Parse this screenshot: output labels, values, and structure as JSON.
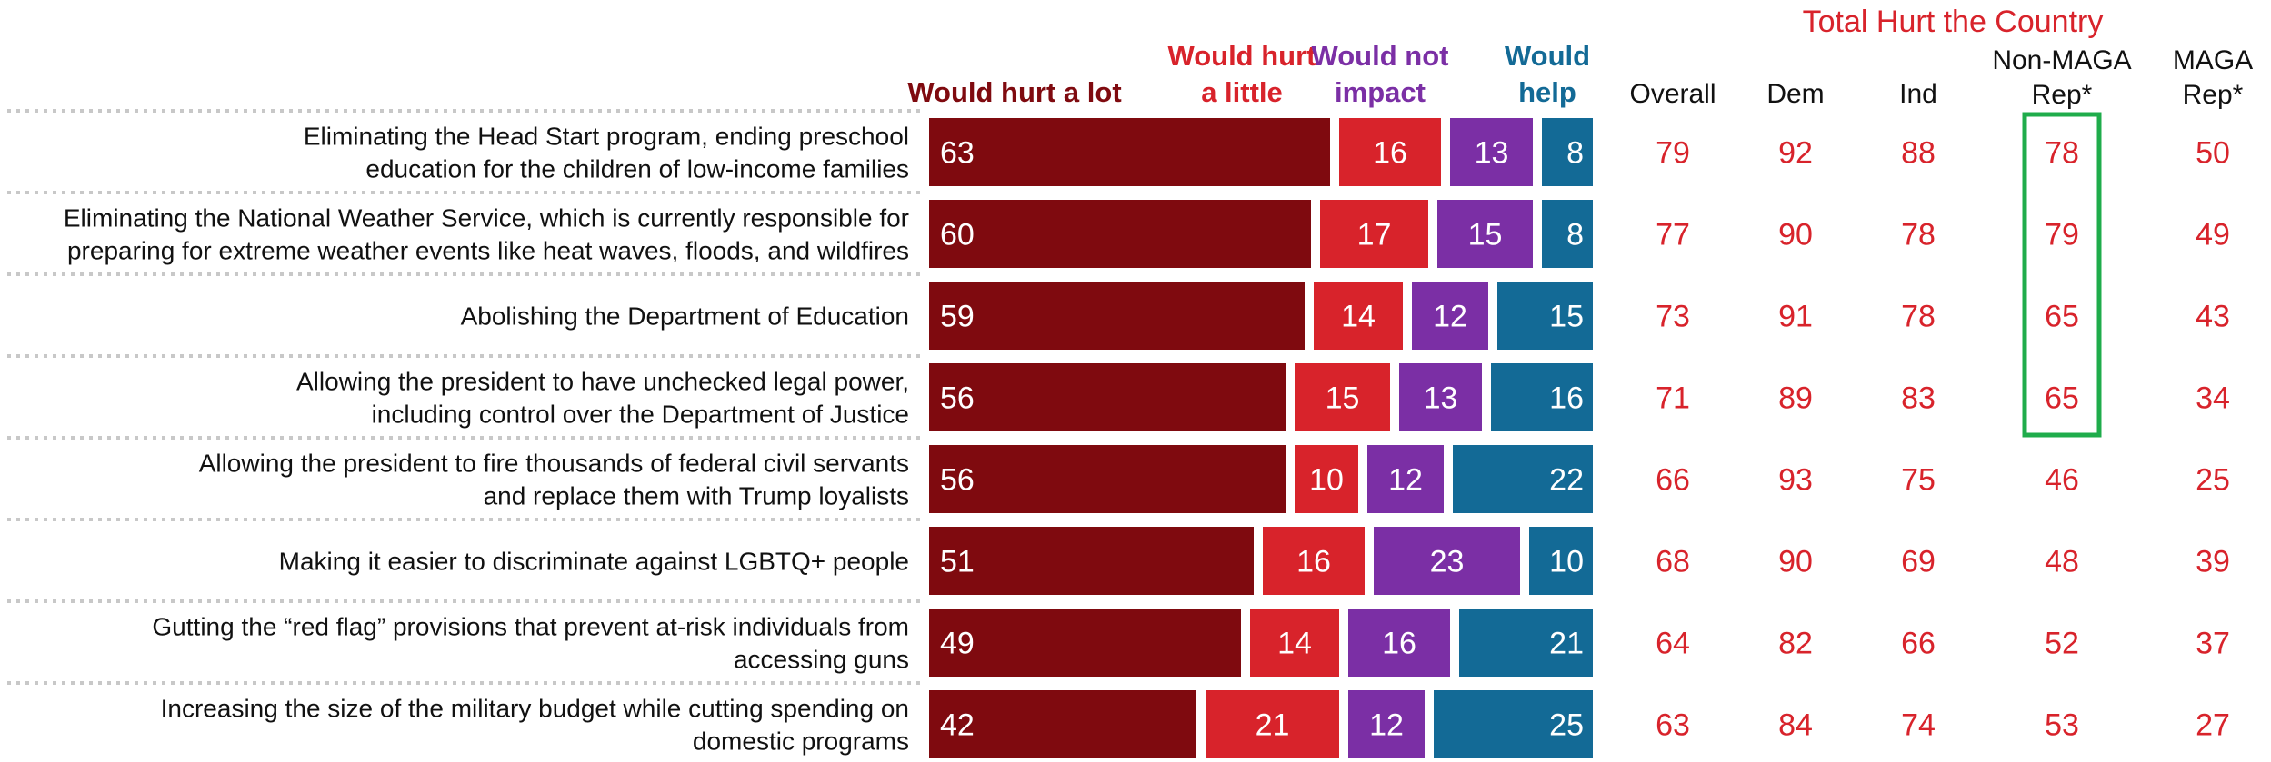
{
  "chart_data": {
    "type": "bar",
    "stacked": true,
    "orientation": "horizontal",
    "categories": [
      [
        "Eliminating the Head Start program, ending preschool",
        "education for the children of low-income families"
      ],
      [
        "Eliminating the National Weather Service, which is currently responsible for",
        "preparing for extreme weather events like heat waves, floods, and wildfires"
      ],
      [
        "Abolishing the Department of Education"
      ],
      [
        "Allowing the president to have unchecked legal power,",
        "including control over the Department of Justice"
      ],
      [
        "Allowing the president to fire thousands of federal civil servants",
        "and replace them with Trump loyalists"
      ],
      [
        "Making it easier to discriminate against LGBTQ+ people"
      ],
      [
        "Gutting the “red flag” provisions that prevent at-risk individuals from",
        "accessing guns"
      ],
      [
        "Increasing the size of the military budget while cutting spending on",
        "domestic programs"
      ]
    ],
    "series": [
      {
        "name": [
          "Would hurt a lot"
        ],
        "color": "#7f0a0f",
        "values": [
          63,
          60,
          59,
          56,
          56,
          51,
          49,
          42
        ]
      },
      {
        "name": [
          "Would hurt",
          "a little"
        ],
        "color": "#d8232b",
        "values": [
          16,
          17,
          14,
          15,
          10,
          16,
          14,
          21
        ]
      },
      {
        "name": [
          "Would not",
          "impact"
        ],
        "color": "#7b2fa5",
        "values": [
          13,
          15,
          12,
          13,
          12,
          23,
          16,
          12
        ]
      },
      {
        "name": [
          "Would",
          "help"
        ],
        "color": "#136a96",
        "values": [
          8,
          8,
          15,
          16,
          22,
          10,
          21,
          25
        ]
      }
    ],
    "table": {
      "title": "Total Hurt the Country",
      "color": "#d8232b",
      "columns": [
        {
          "header": [
            "Overall"
          ],
          "values": [
            79,
            77,
            73,
            71,
            66,
            68,
            64,
            63
          ]
        },
        {
          "header": [
            "Dem"
          ],
          "values": [
            92,
            90,
            91,
            89,
            93,
            90,
            82,
            84
          ]
        },
        {
          "header": [
            "Ind"
          ],
          "values": [
            88,
            78,
            78,
            83,
            75,
            69,
            66,
            74
          ]
        },
        {
          "header": [
            "Non-MAGA",
            "Rep*"
          ],
          "values": [
            78,
            79,
            65,
            65,
            46,
            48,
            52,
            53
          ],
          "highlight_rows": [
            0,
            1,
            2,
            3
          ],
          "highlight_color": "#1fac4b"
        },
        {
          "header": [
            "MAGA",
            "Rep*"
          ],
          "values": [
            50,
            49,
            43,
            34,
            25,
            39,
            37,
            27
          ]
        }
      ]
    }
  }
}
